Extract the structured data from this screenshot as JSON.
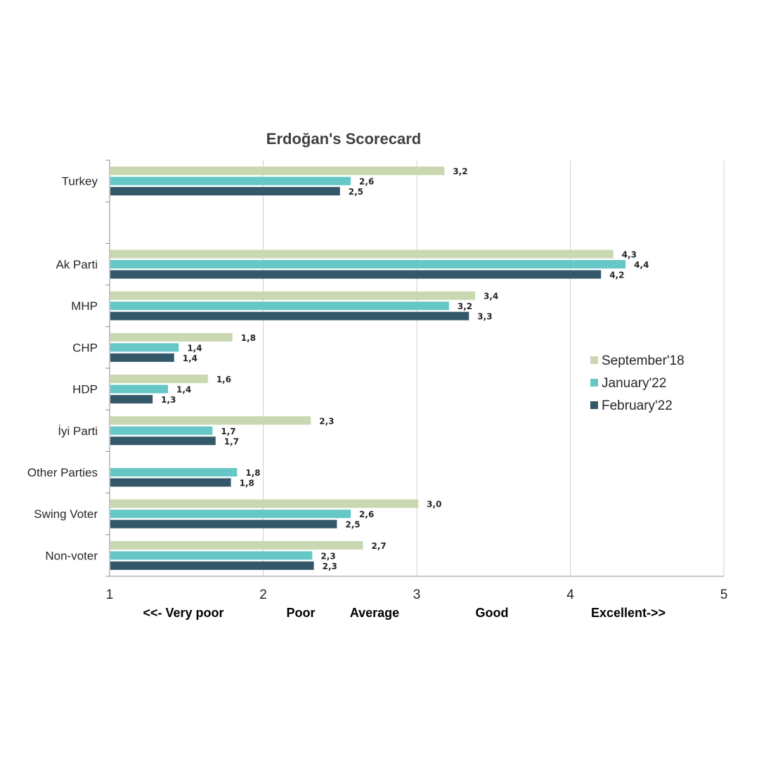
{
  "chart_data": {
    "type": "bar",
    "orientation": "horizontal",
    "title": "Erdoğan's Scorecard",
    "categories": [
      "Turkey",
      "",
      "Ak Parti",
      "MHP",
      "CHP",
      "HDP",
      "İyi Parti",
      "Other Parties",
      "Swing Voter",
      "Non-voter"
    ],
    "series": [
      {
        "name": "September'18",
        "color": "#c9d8b0",
        "values": [
          3.18,
          null,
          4.28,
          3.38,
          1.8,
          1.64,
          2.31,
          null,
          3.01,
          2.65
        ],
        "labels": [
          "3,2",
          "",
          "4,3",
          "3,4",
          "1,8",
          "1,6",
          "2,3",
          "",
          "3,0",
          "2,7"
        ]
      },
      {
        "name": "January'22",
        "color": "#66c7c7",
        "values": [
          2.57,
          null,
          4.36,
          3.21,
          1.45,
          1.38,
          1.67,
          1.83,
          2.57,
          2.32
        ],
        "labels": [
          "2,6",
          "",
          "4,4",
          "3,2",
          "1,4",
          "1,4",
          "1,7",
          "1,8",
          "2,6",
          "2,3"
        ]
      },
      {
        "name": "February'22",
        "color": "#33586a",
        "values": [
          2.5,
          null,
          4.2,
          3.34,
          1.42,
          1.28,
          1.69,
          1.79,
          2.48,
          2.33
        ],
        "labels": [
          "2,5",
          "",
          "4,2",
          "3,3",
          "1,4",
          "1,3",
          "1,7",
          "1,8",
          "2,5",
          "2,3"
        ]
      }
    ],
    "xlim": [
      1,
      5
    ],
    "xticks": [
      1,
      2,
      3,
      4,
      5
    ],
    "scale_labels": [
      "<<- Very poor",
      "Poor",
      "Average",
      "Good",
      "Excellent->>"
    ],
    "grid": true,
    "legend_position": "right"
  }
}
